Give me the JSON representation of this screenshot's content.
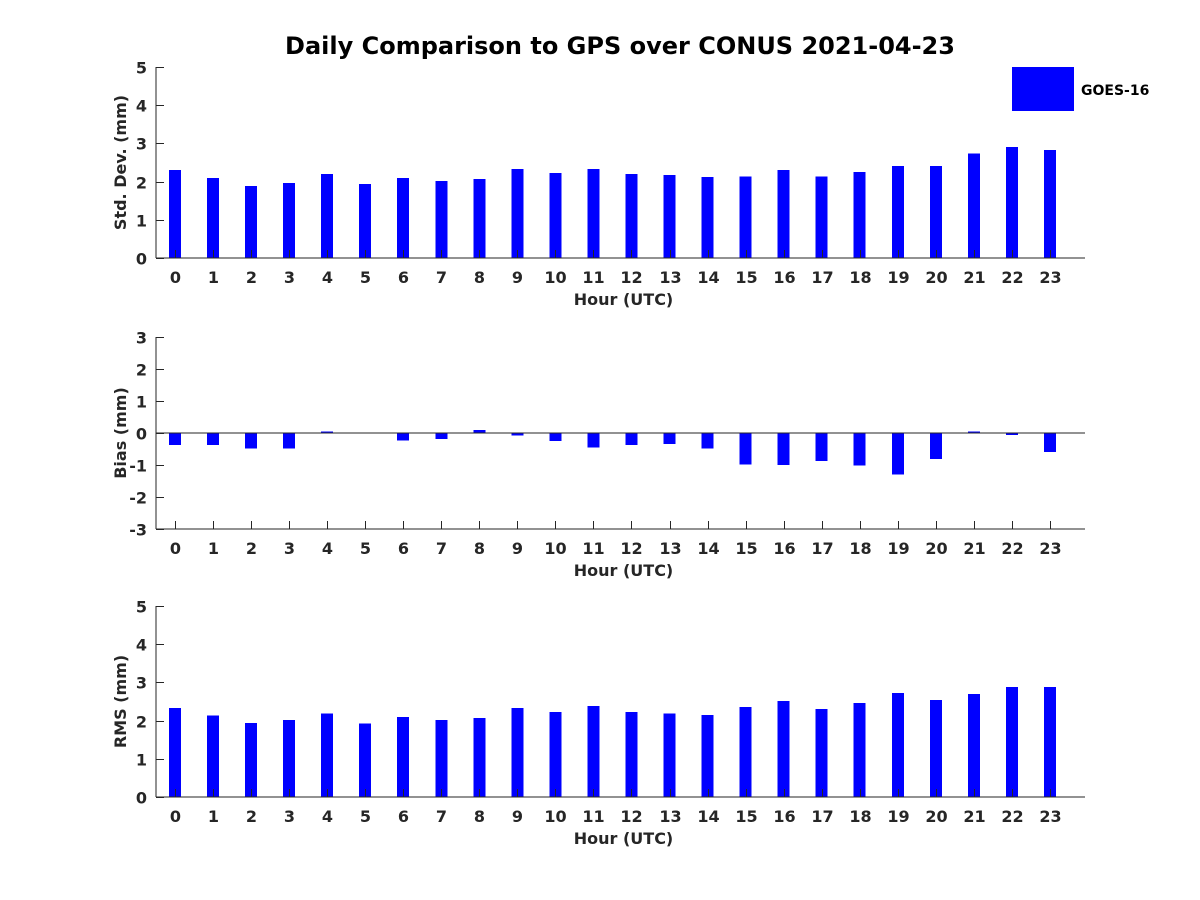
{
  "title": "Daily Comparison to GPS over CONUS 2021-04-23",
  "colors": {
    "bar": "#0000ff"
  },
  "legend": {
    "label": "GOES-16",
    "placement": "top-right"
  },
  "chart_data": [
    {
      "type": "bar",
      "xlabel": "Hour (UTC)",
      "ylabel": "Std. Dev. (mm)",
      "ylim": [
        0,
        5
      ],
      "yticks": [
        0,
        1,
        2,
        3,
        4,
        5
      ],
      "categories": [
        "0",
        "1",
        "2",
        "3",
        "4",
        "5",
        "6",
        "7",
        "8",
        "9",
        "10",
        "11",
        "12",
        "13",
        "14",
        "15",
        "16",
        "17",
        "18",
        "19",
        "20",
        "21",
        "22",
        "23"
      ],
      "series": [
        {
          "name": "GOES-16",
          "values": [
            2.3,
            2.1,
            1.88,
            1.96,
            2.2,
            1.94,
            2.1,
            2.02,
            2.07,
            2.33,
            2.22,
            2.33,
            2.2,
            2.17,
            2.12,
            2.14,
            2.3,
            2.14,
            2.25,
            2.41,
            2.41,
            2.73,
            2.9,
            2.83
          ]
        }
      ]
    },
    {
      "type": "bar",
      "xlabel": "Hour (UTC)",
      "ylabel": "Bias (mm)",
      "ylim": [
        -3,
        3
      ],
      "yticks": [
        -3,
        -2,
        -1,
        0,
        1,
        2,
        3
      ],
      "categories": [
        "0",
        "1",
        "2",
        "3",
        "4",
        "5",
        "6",
        "7",
        "8",
        "9",
        "10",
        "11",
        "12",
        "13",
        "14",
        "15",
        "16",
        "17",
        "18",
        "19",
        "20",
        "21",
        "22",
        "23"
      ],
      "series": [
        {
          "name": "GOES-16",
          "values": [
            -0.38,
            -0.38,
            -0.48,
            -0.48,
            0.04,
            0.0,
            -0.23,
            -0.18,
            0.09,
            -0.08,
            -0.25,
            -0.46,
            -0.38,
            -0.35,
            -0.48,
            -0.98,
            -1.0,
            -0.88,
            -1.02,
            -1.3,
            -0.82,
            0.04,
            -0.06,
            -0.6
          ]
        }
      ]
    },
    {
      "type": "bar",
      "xlabel": "Hour (UTC)",
      "ylabel": "RMS (mm)",
      "ylim": [
        0,
        5
      ],
      "yticks": [
        0,
        1,
        2,
        3,
        4,
        5
      ],
      "categories": [
        "0",
        "1",
        "2",
        "3",
        "4",
        "5",
        "6",
        "7",
        "8",
        "9",
        "10",
        "11",
        "12",
        "13",
        "14",
        "15",
        "16",
        "17",
        "18",
        "19",
        "20",
        "21",
        "22",
        "23"
      ],
      "series": [
        {
          "name": "GOES-16",
          "values": [
            2.33,
            2.13,
            1.94,
            2.02,
            2.18,
            1.92,
            2.1,
            2.02,
            2.07,
            2.33,
            2.23,
            2.38,
            2.23,
            2.18,
            2.15,
            2.35,
            2.51,
            2.31,
            2.46,
            2.72,
            2.54,
            2.7,
            2.88,
            2.88
          ]
        }
      ]
    }
  ]
}
